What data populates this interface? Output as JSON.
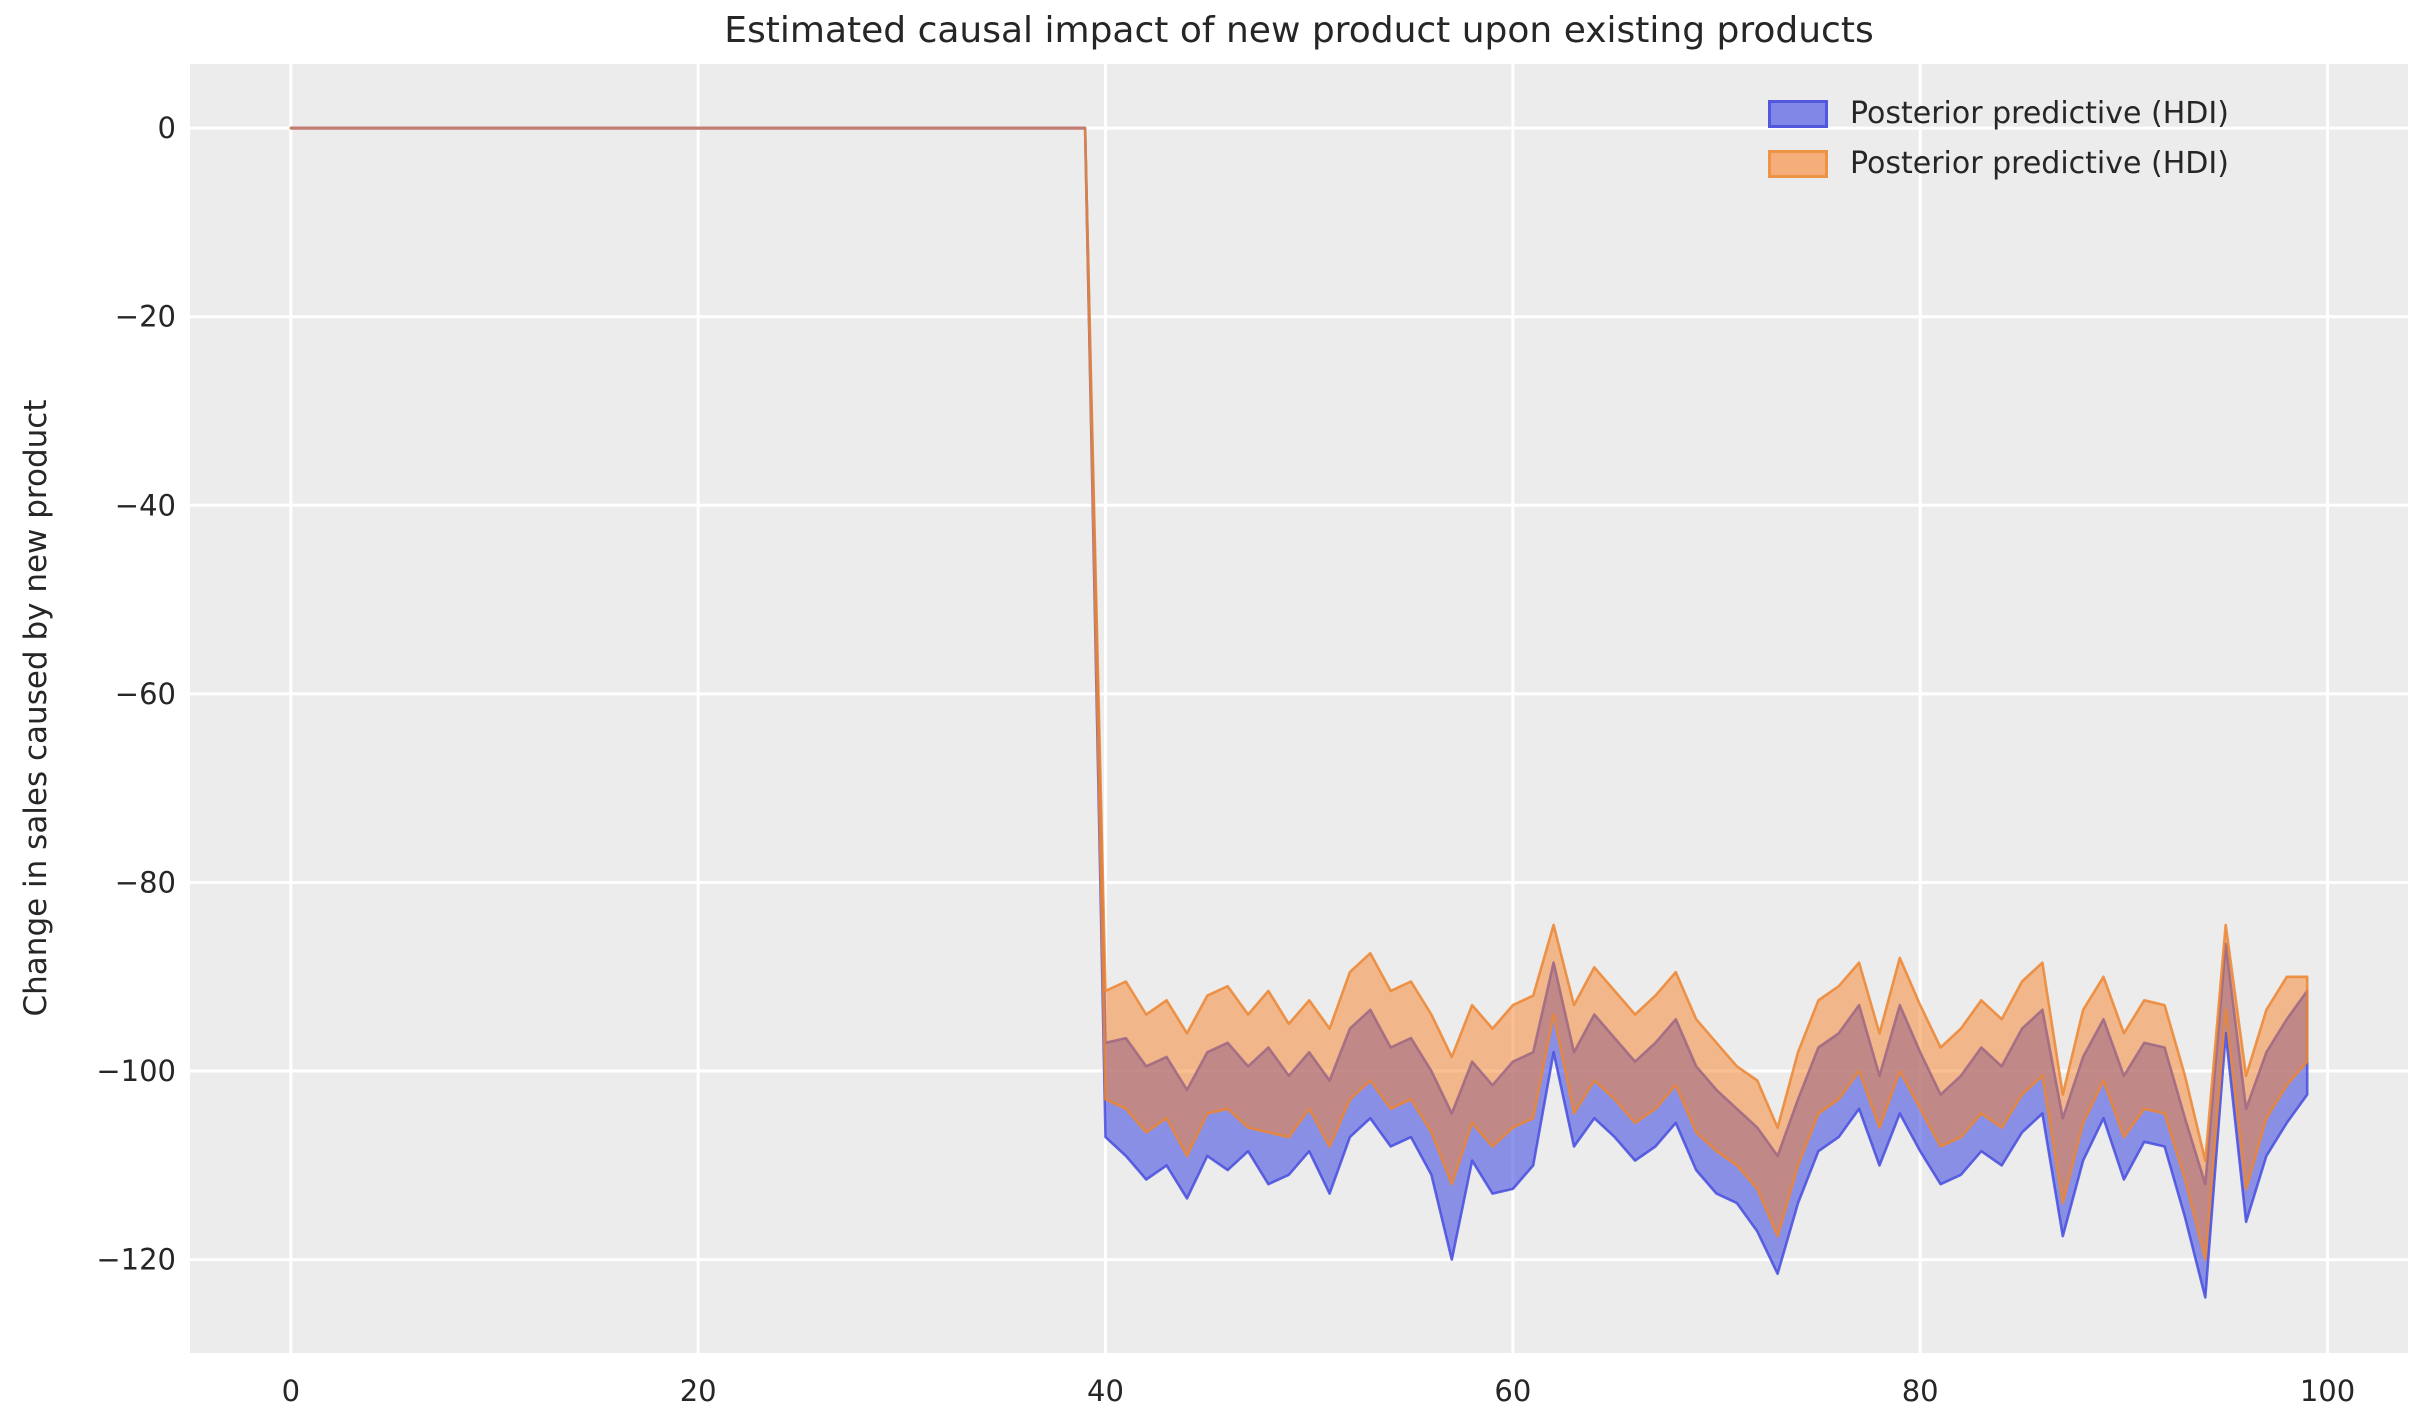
{
  "figure": {
    "background": "#ffffff",
    "axes_background": "#ececec",
    "grid_color": "#ffffff",
    "text_color": "#262626"
  },
  "legend": {
    "position": "upper right",
    "items": [
      {
        "label": "Posterior predictive (HDI)",
        "swatch_fill": "#8187e6",
        "swatch_edge": "#5158de"
      },
      {
        "label": "Posterior predictive (HDI)",
        "swatch_fill": "#f5ae79",
        "swatch_edge": "#ee9448"
      }
    ]
  },
  "chart_data": {
    "type": "area",
    "title": "Estimated causal impact of new product upon existing products",
    "xlabel": "",
    "ylabel": "Change in sales caused by new product",
    "xlim": [
      -4.95,
      103.95
    ],
    "ylim": [
      -129.9,
      6.8
    ],
    "grid": true,
    "legend_position": "upper right",
    "x_ticks": [
      0,
      20,
      40,
      60,
      80,
      100
    ],
    "x_tick_labels": [
      "0",
      "20",
      "40",
      "60",
      "80",
      "100"
    ],
    "y_ticks": [
      0,
      -20,
      -40,
      -60,
      -80,
      -100,
      -120
    ],
    "y_tick_labels": [
      "0",
      "−20",
      "−40",
      "−60",
      "−80",
      "−100",
      "−120"
    ],
    "pre_period": {
      "x_start": 0,
      "x_end": 39,
      "value": 0,
      "line_color": "#c47d73",
      "note": "Both HDI bands collapse to zero width before the treatment; impact drops sharply between x=39 and x=40"
    },
    "x_post": [
      40,
      41,
      42,
      43,
      44,
      45,
      46,
      47,
      48,
      49,
      50,
      51,
      52,
      53,
      54,
      55,
      56,
      57,
      58,
      59,
      60,
      61,
      62,
      63,
      64,
      65,
      66,
      67,
      68,
      69,
      70,
      71,
      72,
      73,
      74,
      75,
      76,
      77,
      78,
      79,
      80,
      81,
      82,
      83,
      84,
      85,
      86,
      87,
      88,
      89,
      90,
      91,
      92,
      93,
      94,
      95,
      96,
      97,
      98,
      99
    ],
    "series": [
      {
        "name": "Posterior predictive (HDI)",
        "role": "blue-hdi-band",
        "fill": "rgba(78,86,226,0.62)",
        "edge": "rgba(70,78,222,0.85)",
        "upper": [
          -97,
          -96.5,
          -99.5,
          -98.5,
          -102,
          -98,
          -97,
          -99.5,
          -97.5,
          -100.5,
          -98,
          -101,
          -95.5,
          -93.5,
          -97.5,
          -96.5,
          -100,
          -104.5,
          -99,
          -101.5,
          -99,
          -98,
          -88.5,
          -98,
          -94,
          -96.5,
          -99,
          -97,
          -94.5,
          -99.5,
          -102,
          -104,
          -106,
          -109,
          -103,
          -97.5,
          -96,
          -93,
          -100.5,
          -93,
          -98,
          -102.5,
          -100.5,
          -97.5,
          -99.5,
          -95.5,
          -93.5,
          -105,
          -98.5,
          -94.5,
          -100.5,
          -97,
          -97.5,
          -105,
          -112,
          -86.5,
          -104,
          -98,
          -94.5,
          -91.5
        ],
        "lower": [
          -107,
          -109,
          -111.5,
          -110,
          -113.5,
          -109,
          -110.5,
          -108.5,
          -112,
          -111,
          -108.5,
          -113,
          -107,
          -105,
          -108,
          -107,
          -111,
          -120,
          -109.5,
          -113,
          -112.5,
          -110,
          -98,
          -108,
          -105,
          -107,
          -109.5,
          -108,
          -105.5,
          -110.5,
          -113,
          -114,
          -117,
          -121.5,
          -114,
          -108.5,
          -107,
          -104,
          -110,
          -104.5,
          -108.5,
          -112,
          -111,
          -108.5,
          -110,
          -106.5,
          -104.5,
          -117.5,
          -109.5,
          -105,
          -111.5,
          -107.5,
          -108,
          -115.5,
          -124,
          -96,
          -116,
          -109,
          -105.5,
          -102.5
        ]
      },
      {
        "name": "Posterior predictive (HDI)",
        "role": "orange-hdi-band",
        "fill": "rgba(246,130,40,0.5)",
        "edge": "rgba(236,134,51,0.85)",
        "upper": [
          -91.5,
          -90.5,
          -94,
          -92.5,
          -96,
          -92,
          -91,
          -94,
          -91.5,
          -95,
          -92.5,
          -95.5,
          -89.5,
          -87.5,
          -91.5,
          -90.5,
          -94,
          -98.5,
          -93,
          -95.5,
          -93,
          -92,
          -84.5,
          -93,
          -89,
          -91.5,
          -94,
          -92,
          -89.5,
          -94.5,
          -97,
          -99.5,
          -101,
          -106,
          -98,
          -92.5,
          -91,
          -88.5,
          -96,
          -88,
          -93,
          -97.5,
          -95.5,
          -92.5,
          -94.5,
          -90.5,
          -88.5,
          -102.5,
          -93.5,
          -90,
          -96,
          -92.5,
          -93,
          -100.5,
          -109.5,
          -84.5,
          -100.5,
          -93.5,
          -90,
          -90
        ],
        "lower": [
          -103,
          -104,
          -106.5,
          -105,
          -109,
          -104.5,
          -104,
          -106,
          -106.5,
          -107,
          -104,
          -108,
          -103,
          -101,
          -104,
          -103,
          -106.5,
          -112,
          -105.5,
          -108,
          -106,
          -105,
          -94,
          -104.5,
          -101,
          -103,
          -105.5,
          -104,
          -101.5,
          -106.5,
          -108.5,
          -110,
          -112.5,
          -117.5,
          -110,
          -104.5,
          -103,
          -100,
          -106,
          -100,
          -104,
          -108,
          -107,
          -104.5,
          -106,
          -102.5,
          -100.5,
          -114,
          -105.5,
          -101,
          -107,
          -104,
          -104.5,
          -111.5,
          -120,
          -93.5,
          -112.5,
          -105,
          -101.5,
          -99
        ]
      }
    ]
  }
}
